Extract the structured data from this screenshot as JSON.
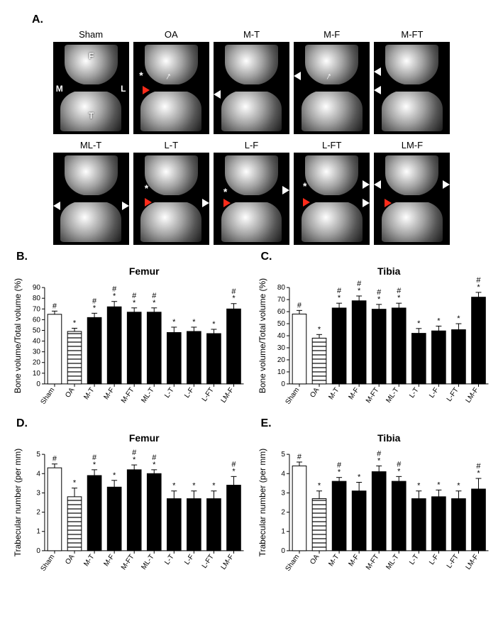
{
  "panelA_label": "A.",
  "panelB_label": "B.",
  "panelC_label": "C.",
  "panelD_label": "D.",
  "panelE_label": "E.",
  "image_titles": {
    "row1": [
      "Sham",
      "OA",
      "M-T",
      "M-F",
      "M-FT"
    ],
    "row2": [
      "ML-T",
      "L-T",
      "L-F",
      "L-FT",
      "LM-F"
    ]
  },
  "sham_labels": {
    "F": "F",
    "T": "T",
    "M": "M",
    "L": "L"
  },
  "categories": [
    "Sham",
    "OA",
    "M-T",
    "M-F",
    "M-FT",
    "ML-T",
    "L-T",
    "L-F",
    "L-FT",
    "LM-F"
  ],
  "colors": {
    "sham_fill": "#ffffff",
    "sham_stroke": "#000000",
    "oa_fill": "#ffffff",
    "oa_stroke": "#000000",
    "oa_hatch": "#000000",
    "solid_fill": "#000000",
    "error_stroke": "#000000",
    "axis": "#000000",
    "tick_text": "#000000"
  },
  "chartB": {
    "title": "Femur",
    "ylabel": "Bone volume/Total volume  (%)",
    "ylim": [
      0,
      90
    ],
    "ytick_step": 10,
    "values": [
      65,
      49,
      62,
      72,
      67,
      67,
      48,
      49,
      47,
      70
    ],
    "errors": [
      3,
      3,
      4,
      5,
      4,
      4,
      5,
      4,
      4,
      5
    ],
    "stars": [
      "",
      "*",
      "*",
      "*",
      "*",
      "*",
      "*",
      "*",
      "*",
      "*"
    ],
    "hashes": [
      "#",
      "",
      "#",
      "#",
      "#",
      "#",
      "",
      "",
      "",
      "#"
    ]
  },
  "chartC": {
    "title": "Tibia",
    "ylabel": "Bone volume/Total volume  (%)",
    "ylim": [
      0,
      80
    ],
    "ytick_step": 10,
    "values": [
      58,
      38,
      63,
      69,
      62,
      63,
      42,
      44,
      45,
      72
    ],
    "errors": [
      3,
      3,
      4,
      4,
      4,
      4,
      4,
      4,
      5,
      4
    ],
    "stars": [
      "",
      "*",
      "*",
      "*",
      "*",
      "*",
      "*",
      "*",
      "*",
      "*"
    ],
    "hashes": [
      "#",
      "",
      "#",
      "#",
      "#",
      "#",
      "",
      "",
      "",
      "#"
    ]
  },
  "chartD": {
    "title": "Femur",
    "ylabel": "Trabecular  number  (per mm)",
    "ylim": [
      0,
      5
    ],
    "ytick_step": 1,
    "values": [
      4.3,
      2.8,
      3.9,
      3.3,
      4.2,
      4.0,
      2.7,
      2.7,
      2.7,
      3.4
    ],
    "errors": [
      0.2,
      0.45,
      0.3,
      0.35,
      0.25,
      0.2,
      0.4,
      0.4,
      0.4,
      0.45
    ],
    "stars": [
      "",
      "*",
      "*",
      "*",
      "*",
      "*",
      "*",
      "*",
      "*",
      "*"
    ],
    "hashes": [
      "#",
      "",
      "#",
      "",
      "#",
      "#",
      "",
      "",
      "",
      "#"
    ]
  },
  "chartE": {
    "title": "Tibia",
    "ylabel": "Trabecular  number  (per mm)",
    "ylim": [
      0,
      5
    ],
    "ytick_step": 1,
    "values": [
      4.4,
      2.7,
      3.6,
      3.1,
      4.1,
      3.6,
      2.7,
      2.8,
      2.7,
      3.2
    ],
    "errors": [
      0.2,
      0.4,
      0.2,
      0.45,
      0.3,
      0.25,
      0.4,
      0.35,
      0.4,
      0.55
    ],
    "stars": [
      "",
      "*",
      "*",
      "*",
      "*",
      "*",
      "*",
      "*",
      "*",
      "*"
    ],
    "hashes": [
      "#",
      "",
      "#",
      "",
      "#",
      "#",
      "",
      "",
      "",
      "#"
    ]
  },
  "chart_style": {
    "bar_width_ratio": 0.7,
    "title_fontsize": 14,
    "label_fontsize": 12,
    "tick_fontsize": 10,
    "sig_fontsize": 11
  }
}
